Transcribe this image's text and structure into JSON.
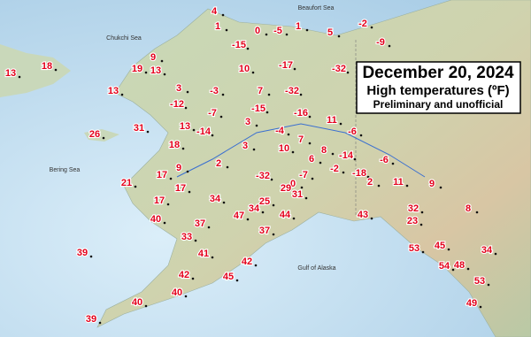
{
  "map": {
    "title": "December 20, 2024",
    "subtitle": "High temperatures (ºF)",
    "note": "Preliminary and unofficial",
    "seas": [
      "Beaufort Sea",
      "Chukchi Sea",
      "Bering Sea",
      "Gulf of Alaska"
    ],
    "temperatures": [
      4,
      1,
      0,
      -5,
      1,
      5,
      -2,
      -9,
      -15,
      9,
      13,
      19,
      13,
      18,
      10,
      -17,
      -32,
      13,
      3,
      -12,
      -3,
      7,
      -32,
      13,
      31,
      -7,
      -15,
      -16,
      11,
      26,
      18,
      -14,
      3,
      -4,
      -6,
      10,
      7,
      8,
      3,
      -14,
      6,
      -6,
      9,
      2,
      -2,
      -18,
      2,
      11,
      9,
      17,
      21,
      17,
      -32,
      -7,
      0,
      29,
      31,
      25,
      34,
      17,
      34,
      44,
      43,
      32,
      23,
      8,
      40,
      37,
      47,
      37,
      33,
      45,
      53,
      34,
      39,
      41,
      42,
      54,
      48,
      42,
      45,
      53,
      40,
      40,
      49,
      39
    ]
  }
}
